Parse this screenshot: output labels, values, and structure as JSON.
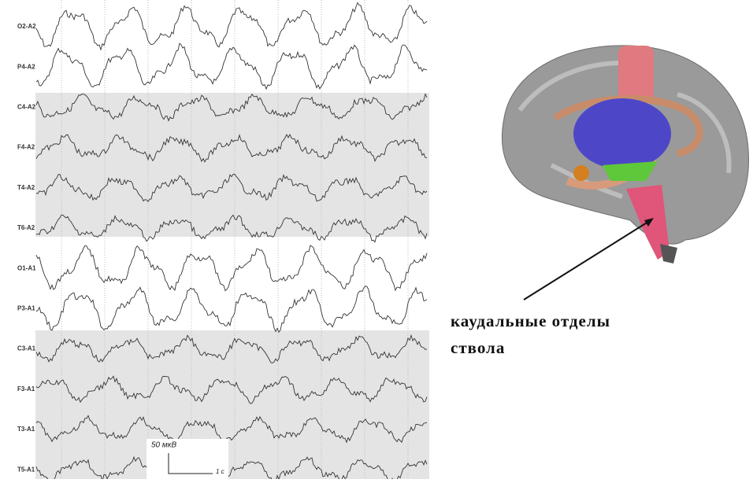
{
  "eeg": {
    "channels": [
      "O2-A2",
      "P4-A2",
      "C4-A2",
      "F4-A2",
      "T4-A2",
      "T6-A2",
      "O1-A1",
      "P3-A1",
      "C3-A1",
      "F3-A1",
      "T3-A1",
      "T5-A1"
    ],
    "scale_amplitude": "50 мкВ",
    "scale_time": "1 с"
  },
  "annotation": {
    "lines": [
      "каудальные отделы",
      "ствола"
    ]
  }
}
